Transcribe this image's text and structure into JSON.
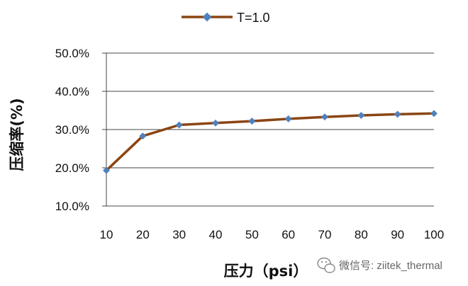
{
  "chart_data": {
    "type": "line",
    "x": [
      10,
      20,
      30,
      40,
      50,
      60,
      70,
      80,
      90,
      100
    ],
    "series": [
      {
        "name": "T=1.0",
        "color": "#8B4513",
        "marker_color": "#4F81BD",
        "values": [
          19.3,
          28.3,
          31.2,
          31.7,
          32.2,
          32.8,
          33.3,
          33.7,
          34.0,
          34.2
        ]
      }
    ],
    "xlabel": "压力（psi）",
    "ylabel": "压缩率(%)",
    "ylim": [
      10,
      50
    ],
    "yticks": [
      "10.0%",
      "20.0%",
      "30.0%",
      "40.0%",
      "50.0%"
    ],
    "xticks": [
      "10",
      "20",
      "30",
      "40",
      "50",
      "60",
      "70",
      "80",
      "90",
      "100"
    ],
    "grid": true,
    "legend_position": "top"
  },
  "watermark": {
    "text": "微信号: ziitek_thermal",
    "icon": "wechat-icon"
  }
}
